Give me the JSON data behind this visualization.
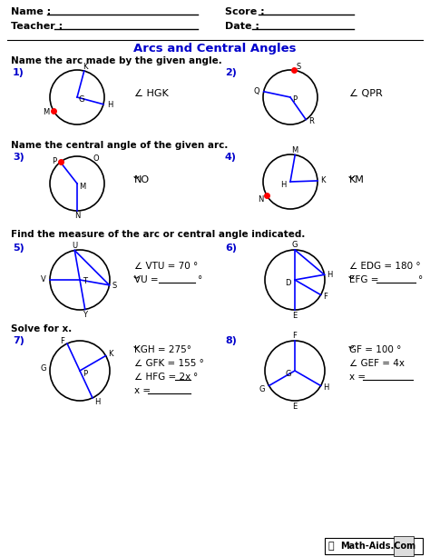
{
  "title": "Arcs and Central Angles",
  "title_color": "#0000CC",
  "bg_color": "#ffffff",
  "s1": "Name the arc made by the given angle.",
  "s2": "Name the central angle of the given arc.",
  "s3": "Find the measure of the arc or central angle indicated.",
  "s4": "Solve for x.",
  "footer": "Math-Aids.Com",
  "blue": "#0000CC",
  "black": "#000000",
  "red": "#CC0000"
}
